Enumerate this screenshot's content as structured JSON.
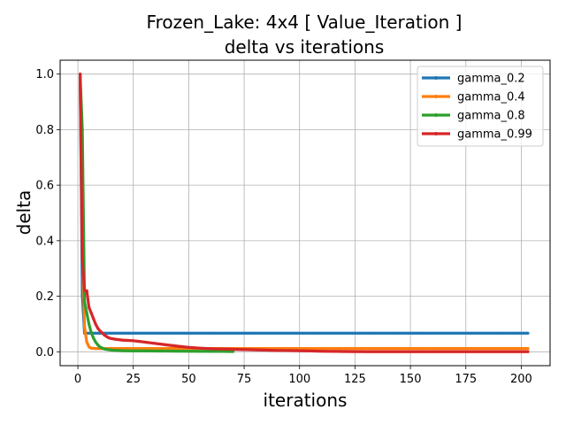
{
  "chart_data": {
    "type": "line",
    "title_line1": "Frozen_Lake: 4x4 [ Value_Iteration ]",
    "title_line2": "delta vs iterations",
    "xlabel": "iterations",
    "ylabel": "delta",
    "xlim": [
      -8,
      213
    ],
    "ylim": [
      -0.05,
      1.05
    ],
    "x_ticks": [
      0,
      25,
      50,
      75,
      100,
      125,
      150,
      175,
      200
    ],
    "y_ticks": [
      0.0,
      0.2,
      0.4,
      0.6,
      0.8,
      1.0
    ],
    "y_tick_labels": [
      "0.0",
      "0.2",
      "0.4",
      "0.6",
      "0.8",
      "1.0"
    ],
    "grid": true,
    "legend_position": "top-right",
    "series": [
      {
        "name": "gamma_0.2",
        "color": "#1f77b4",
        "points": [
          [
            1,
            1.0
          ],
          [
            2,
            0.2
          ],
          [
            3,
            0.067
          ],
          [
            203,
            0.067
          ]
        ]
      },
      {
        "name": "gamma_0.4",
        "color": "#ff7f0e",
        "points": [
          [
            1,
            1.0
          ],
          [
            2,
            0.4
          ],
          [
            3,
            0.09
          ],
          [
            4,
            0.035
          ],
          [
            5,
            0.018
          ],
          [
            6,
            0.013
          ],
          [
            8,
            0.012
          ],
          [
            203,
            0.012
          ]
        ]
      },
      {
        "name": "gamma_0.8",
        "color": "#2ca02c",
        "points": [
          [
            1,
            1.0
          ],
          [
            2,
            0.8
          ],
          [
            3,
            0.18
          ],
          [
            4,
            0.14
          ],
          [
            5,
            0.1
          ],
          [
            6,
            0.07
          ],
          [
            7,
            0.05
          ],
          [
            8,
            0.035
          ],
          [
            9,
            0.025
          ],
          [
            10,
            0.017
          ],
          [
            12,
            0.01
          ],
          [
            15,
            0.006
          ],
          [
            20,
            0.004
          ],
          [
            30,
            0.003
          ],
          [
            50,
            0.002
          ],
          [
            70,
            0.001
          ]
        ]
      },
      {
        "name": "gamma_0.99",
        "color": "#d62728",
        "points": [
          [
            1,
            1.0
          ],
          [
            2,
            0.33
          ],
          [
            3,
            0.22
          ],
          [
            4,
            0.22
          ],
          [
            5,
            0.16
          ],
          [
            6,
            0.14
          ],
          [
            7,
            0.12
          ],
          [
            8,
            0.1
          ],
          [
            9,
            0.085
          ],
          [
            10,
            0.075
          ],
          [
            11,
            0.068
          ],
          [
            12,
            0.06
          ],
          [
            13,
            0.055
          ],
          [
            14,
            0.05
          ],
          [
            15,
            0.048
          ],
          [
            17,
            0.045
          ],
          [
            20,
            0.042
          ],
          [
            25,
            0.04
          ],
          [
            30,
            0.035
          ],
          [
            35,
            0.03
          ],
          [
            40,
            0.025
          ],
          [
            45,
            0.02
          ],
          [
            50,
            0.016
          ],
          [
            55,
            0.013
          ],
          [
            60,
            0.011
          ],
          [
            70,
            0.009
          ],
          [
            80,
            0.007
          ],
          [
            90,
            0.005
          ],
          [
            100,
            0.004
          ],
          [
            110,
            0.002
          ],
          [
            120,
            0.001
          ],
          [
            130,
            0.0005
          ],
          [
            203,
            0.0005
          ]
        ]
      }
    ]
  }
}
